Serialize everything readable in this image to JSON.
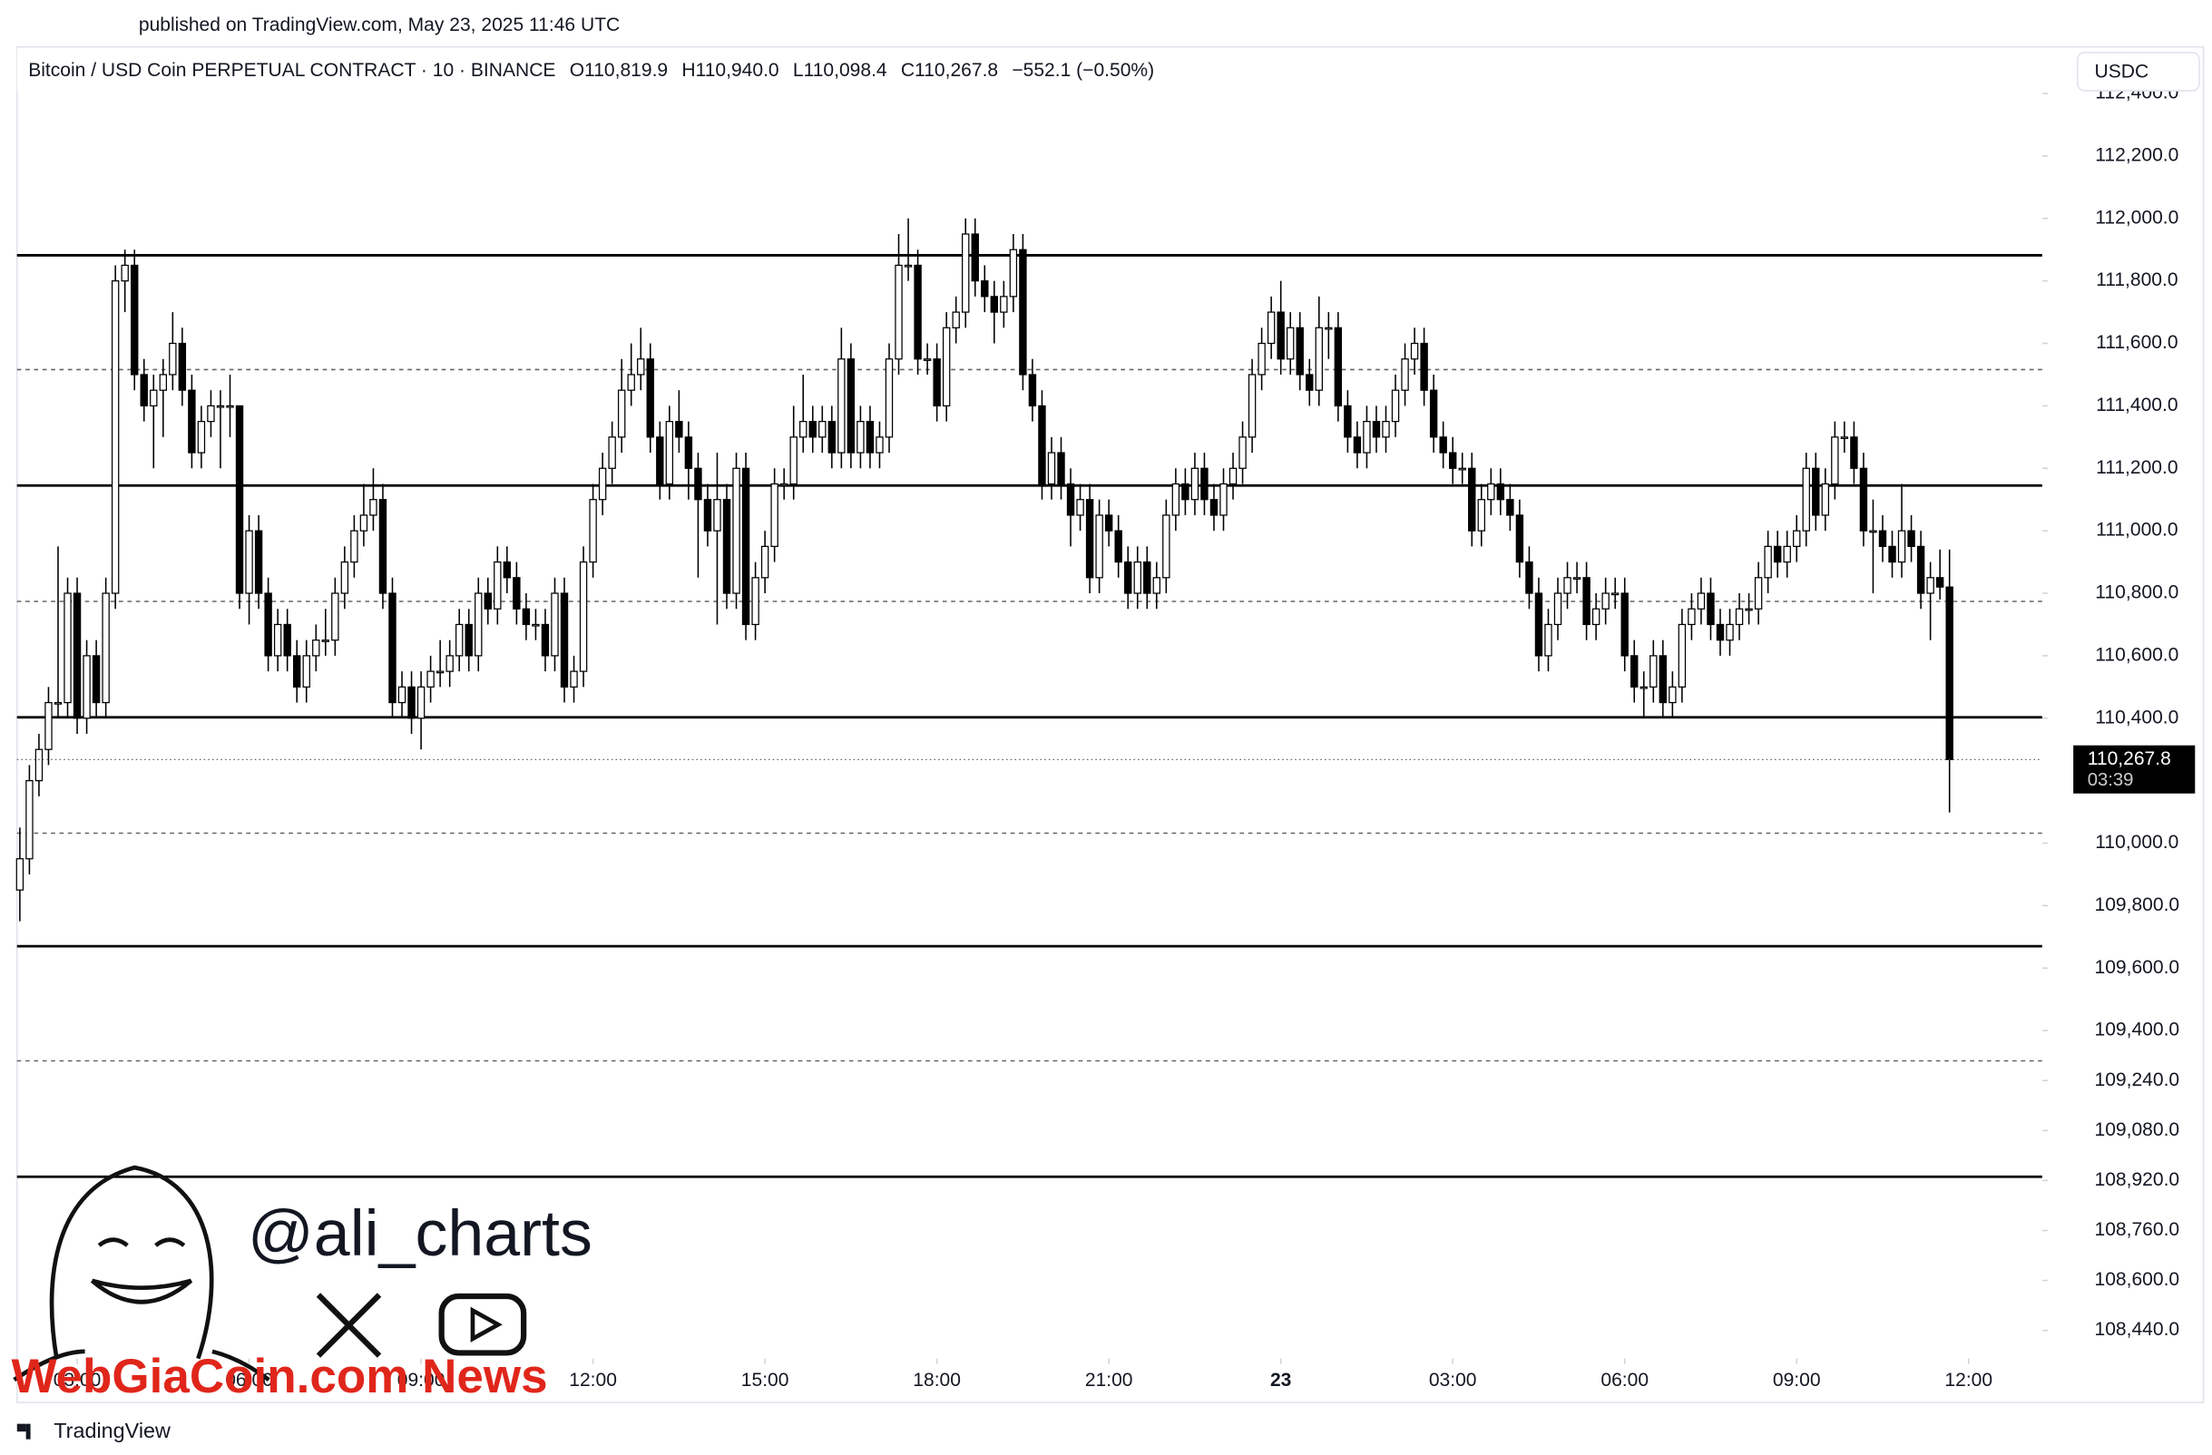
{
  "chart_data": {
    "type": "candlestick",
    "published": "published on TradingView.com, May 23, 2025 11:46 UTC",
    "title": "Bitcoin / USD Coin PERPETUAL CONTRACT · 10 · BINANCE",
    "ohlc_legend": [
      "O110,819.9",
      "H110,940.0",
      "L110,098.4",
      "C110,267.8",
      "−552.1 (−0.50%)"
    ],
    "currency": "USDC",
    "last_price": {
      "value": 110267.8,
      "label": "110,267.8"
    },
    "countdown": "03:39",
    "brand": "TradingView",
    "watermark": "WebGiaCoin.com News",
    "handle": "@ali_charts",
    "up_color": "#ffffff",
    "down_color": "#000000",
    "xlim": [
      -0.3,
      211.7
    ],
    "xticks": [
      {
        "value": 6,
        "label": "03:00"
      },
      {
        "value": 24,
        "label": "06:00"
      },
      {
        "value": 42,
        "label": "09:00"
      },
      {
        "value": 60,
        "label": "12:00"
      },
      {
        "value": 78,
        "label": "15:00"
      },
      {
        "value": 96,
        "label": "18:00"
      },
      {
        "value": 114,
        "label": "21:00"
      },
      {
        "value": 132,
        "label": "23"
      },
      {
        "value": 150,
        "label": "03:00"
      },
      {
        "value": 168,
        "label": "06:00"
      },
      {
        "value": 186,
        "label": "09:00"
      },
      {
        "value": 204,
        "label": "12:00"
      }
    ],
    "ylim": [
      108350,
      112540
    ],
    "yticks": [
      {
        "value": 112400,
        "label": "112,400.0"
      },
      {
        "value": 112200,
        "label": "112,200.0"
      },
      {
        "value": 112000,
        "label": "112,000.0"
      },
      {
        "value": 111800,
        "label": "111,800.0"
      },
      {
        "value": 111600,
        "label": "111,600.0"
      },
      {
        "value": 111400,
        "label": "111,400.0"
      },
      {
        "value": 111200,
        "label": "111,200.0"
      },
      {
        "value": 111000,
        "label": "111,000.0"
      },
      {
        "value": 110800,
        "label": "110,800.0"
      },
      {
        "value": 110600,
        "label": "110,600.0"
      },
      {
        "value": 110400,
        "label": "110,400.0"
      },
      {
        "value": 110000,
        "label": "110,000.0"
      },
      {
        "value": 109800,
        "label": "109,800.0"
      },
      {
        "value": 109600,
        "label": "109,600.0"
      },
      {
        "value": 109400,
        "label": "109,400.0"
      },
      {
        "value": 109240,
        "label": "109,240.0"
      },
      {
        "value": 109080,
        "label": "109,080.0"
      },
      {
        "value": 108920,
        "label": "108,920.0"
      },
      {
        "value": 108760,
        "label": "108,760.0"
      },
      {
        "value": 108600,
        "label": "108,600.0"
      },
      {
        "value": 108440,
        "label": "108,440.0"
      }
    ],
    "levels_solid": [
      111882,
      111145,
      110403,
      109670,
      108932
    ],
    "levels_dashed": [
      111516,
      110774,
      110032,
      109303
    ],
    "candles": [
      [
        109850,
        110050,
        109750,
        109950
      ],
      [
        109950,
        110250,
        109900,
        110200
      ],
      [
        110200,
        110350,
        110150,
        110300
      ],
      [
        110300,
        110500,
        110250,
        110450
      ],
      [
        110450,
        110950,
        110400,
        110450
      ],
      [
        110450,
        110850,
        110400,
        110800
      ],
      [
        110800,
        110850,
        110350,
        110400
      ],
      [
        110400,
        110650,
        110350,
        110600
      ],
      [
        110600,
        110650,
        110400,
        110450
      ],
      [
        110450,
        110850,
        110400,
        110800
      ],
      [
        110800,
        111850,
        110750,
        111800
      ],
      [
        111800,
        111900,
        111700,
        111850
      ],
      [
        111850,
        111900,
        111450,
        111500
      ],
      [
        111500,
        111550,
        111350,
        111400
      ],
      [
        111400,
        111500,
        111200,
        111450
      ],
      [
        111450,
        111550,
        111300,
        111500
      ],
      [
        111500,
        111700,
        111450,
        111600
      ],
      [
        111600,
        111650,
        111400,
        111450
      ],
      [
        111450,
        111500,
        111200,
        111250
      ],
      [
        111250,
        111400,
        111200,
        111350
      ],
      [
        111350,
        111450,
        111300,
        111400
      ],
      [
        111400,
        111450,
        111200,
        111400
      ],
      [
        111400,
        111500,
        111300,
        111400
      ],
      [
        111400,
        111400,
        110750,
        110800
      ],
      [
        110800,
        111050,
        110700,
        111000
      ],
      [
        111000,
        111050,
        110750,
        110800
      ],
      [
        110800,
        110850,
        110550,
        110600
      ],
      [
        110600,
        110750,
        110550,
        110700
      ],
      [
        110700,
        110750,
        110550,
        110600
      ],
      [
        110600,
        110650,
        110450,
        110500
      ],
      [
        110500,
        110650,
        110450,
        110600
      ],
      [
        110600,
        110700,
        110550,
        110650
      ],
      [
        110650,
        110750,
        110600,
        110650
      ],
      [
        110650,
        110850,
        110600,
        110800
      ],
      [
        110800,
        110950,
        110750,
        110900
      ],
      [
        110900,
        111050,
        110850,
        111000
      ],
      [
        111000,
        111150,
        110950,
        111050
      ],
      [
        111050,
        111200,
        111000,
        111100
      ],
      [
        111100,
        111150,
        110750,
        110800
      ],
      [
        110800,
        110850,
        110400,
        110450
      ],
      [
        110450,
        110550,
        110400,
        110500
      ],
      [
        110500,
        110550,
        110350,
        110400
      ],
      [
        110400,
        110550,
        110300,
        110500
      ],
      [
        110500,
        110600,
        110450,
        110550
      ],
      [
        110550,
        110650,
        110500,
        110550
      ],
      [
        110550,
        110650,
        110500,
        110600
      ],
      [
        110600,
        110750,
        110550,
        110700
      ],
      [
        110700,
        110750,
        110550,
        110600
      ],
      [
        110600,
        110850,
        110550,
        110800
      ],
      [
        110800,
        110850,
        110700,
        110750
      ],
      [
        110750,
        110950,
        110700,
        110900
      ],
      [
        110900,
        110950,
        110800,
        110850
      ],
      [
        110850,
        110900,
        110700,
        110750
      ],
      [
        110750,
        110800,
        110650,
        110700
      ],
      [
        110700,
        110750,
        110650,
        110700
      ],
      [
        110700,
        110750,
        110550,
        110600
      ],
      [
        110600,
        110850,
        110550,
        110800
      ],
      [
        110800,
        110850,
        110450,
        110500
      ],
      [
        110500,
        110600,
        110450,
        110550
      ],
      [
        110550,
        110950,
        110500,
        110900
      ],
      [
        110900,
        111150,
        110850,
        111100
      ],
      [
        111100,
        111250,
        111050,
        111200
      ],
      [
        111200,
        111350,
        111150,
        111300
      ],
      [
        111300,
        111550,
        111250,
        111450
      ],
      [
        111450,
        111600,
        111400,
        111500
      ],
      [
        111500,
        111650,
        111450,
        111550
      ],
      [
        111550,
        111600,
        111250,
        111300
      ],
      [
        111300,
        111350,
        111100,
        111150
      ],
      [
        111150,
        111400,
        111100,
        111350
      ],
      [
        111350,
        111450,
        111250,
        111300
      ],
      [
        111300,
        111350,
        111100,
        111200
      ],
      [
        111200,
        111250,
        110850,
        111100
      ],
      [
        111100,
        111150,
        110950,
        111000
      ],
      [
        111000,
        111250,
        110700,
        111100
      ],
      [
        111100,
        111150,
        110750,
        110800
      ],
      [
        110800,
        111250,
        110750,
        111200
      ],
      [
        111200,
        111250,
        110650,
        110700
      ],
      [
        110700,
        110900,
        110650,
        110850
      ],
      [
        110850,
        111000,
        110800,
        110950
      ],
      [
        110950,
        111200,
        110900,
        111150
      ],
      [
        111150,
        111200,
        111100,
        111150
      ],
      [
        111150,
        111400,
        111100,
        111300
      ],
      [
        111300,
        111500,
        111250,
        111350
      ],
      [
        111350,
        111400,
        111250,
        111300
      ],
      [
        111300,
        111400,
        111250,
        111350
      ],
      [
        111350,
        111400,
        111200,
        111250
      ],
      [
        111250,
        111650,
        111200,
        111550
      ],
      [
        111550,
        111600,
        111200,
        111250
      ],
      [
        111250,
        111400,
        111200,
        111350
      ],
      [
        111350,
        111400,
        111200,
        111250
      ],
      [
        111250,
        111350,
        111200,
        111300
      ],
      [
        111300,
        111600,
        111250,
        111550
      ],
      [
        111550,
        111950,
        111500,
        111850
      ],
      [
        111850,
        112000,
        111800,
        111850
      ],
      [
        111850,
        111900,
        111500,
        111550
      ],
      [
        111550,
        111600,
        111500,
        111550
      ],
      [
        111550,
        111600,
        111350,
        111400
      ],
      [
        111400,
        111700,
        111350,
        111650
      ],
      [
        111650,
        111750,
        111600,
        111700
      ],
      [
        111700,
        112000,
        111650,
        111950
      ],
      [
        111950,
        112000,
        111750,
        111800
      ],
      [
        111800,
        111850,
        111700,
        111750
      ],
      [
        111750,
        111800,
        111600,
        111700
      ],
      [
        111700,
        111800,
        111650,
        111750
      ],
      [
        111750,
        111950,
        111700,
        111900
      ],
      [
        111900,
        111950,
        111450,
        111500
      ],
      [
        111500,
        111550,
        111350,
        111400
      ],
      [
        111400,
        111450,
        111100,
        111150
      ],
      [
        111150,
        111300,
        111100,
        111250
      ],
      [
        111250,
        111300,
        111100,
        111150
      ],
      [
        111150,
        111200,
        110950,
        111050
      ],
      [
        111050,
        111150,
        111000,
        111100
      ],
      [
        111100,
        111150,
        110800,
        110850
      ],
      [
        110850,
        111100,
        110800,
        111050
      ],
      [
        111050,
        111100,
        110950,
        111000
      ],
      [
        111000,
        111050,
        110850,
        110900
      ],
      [
        110900,
        110950,
        110750,
        110800
      ],
      [
        110800,
        110950,
        110750,
        110900
      ],
      [
        110900,
        110950,
        110750,
        110800
      ],
      [
        110800,
        110900,
        110750,
        110850
      ],
      [
        110850,
        111100,
        110800,
        111050
      ],
      [
        111050,
        111200,
        111000,
        111150
      ],
      [
        111150,
        111200,
        111050,
        111100
      ],
      [
        111100,
        111250,
        111050,
        111200
      ],
      [
        111200,
        111250,
        111050,
        111100
      ],
      [
        111100,
        111150,
        111000,
        111050
      ],
      [
        111050,
        111200,
        111000,
        111150
      ],
      [
        111150,
        111250,
        111100,
        111200
      ],
      [
        111200,
        111350,
        111150,
        111300
      ],
      [
        111300,
        111550,
        111250,
        111500
      ],
      [
        111500,
        111650,
        111450,
        111600
      ],
      [
        111600,
        111750,
        111550,
        111700
      ],
      [
        111700,
        111800,
        111500,
        111550
      ],
      [
        111550,
        111700,
        111500,
        111650
      ],
      [
        111650,
        111700,
        111450,
        111500
      ],
      [
        111500,
        111550,
        111400,
        111450
      ],
      [
        111450,
        111750,
        111400,
        111650
      ],
      [
        111650,
        111700,
        111550,
        111650
      ],
      [
        111650,
        111700,
        111350,
        111400
      ],
      [
        111400,
        111450,
        111250,
        111300
      ],
      [
        111300,
        111350,
        111200,
        111250
      ],
      [
        111250,
        111400,
        111200,
        111350
      ],
      [
        111350,
        111400,
        111250,
        111300
      ],
      [
        111300,
        111400,
        111250,
        111350
      ],
      [
        111350,
        111500,
        111300,
        111450
      ],
      [
        111450,
        111600,
        111400,
        111550
      ],
      [
        111550,
        111650,
        111500,
        111600
      ],
      [
        111600,
        111650,
        111400,
        111450
      ],
      [
        111450,
        111500,
        111250,
        111300
      ],
      [
        111300,
        111350,
        111200,
        111250
      ],
      [
        111250,
        111300,
        111150,
        111200
      ],
      [
        111200,
        111250,
        111150,
        111200
      ],
      [
        111200,
        111250,
        110950,
        111000
      ],
      [
        111000,
        111150,
        110950,
        111100
      ],
      [
        111100,
        111200,
        111050,
        111150
      ],
      [
        111150,
        111200,
        111050,
        111100
      ],
      [
        111100,
        111150,
        111000,
        111050
      ],
      [
        111050,
        111100,
        110850,
        110900
      ],
      [
        110900,
        110950,
        110750,
        110800
      ],
      [
        110800,
        110850,
        110550,
        110600
      ],
      [
        110600,
        110750,
        110550,
        110700
      ],
      [
        110700,
        110850,
        110650,
        110800
      ],
      [
        110800,
        110900,
        110750,
        110850
      ],
      [
        110850,
        110900,
        110800,
        110850
      ],
      [
        110850,
        110900,
        110650,
        110700
      ],
      [
        110700,
        110800,
        110650,
        110750
      ],
      [
        110750,
        110850,
        110700,
        110800
      ],
      [
        110800,
        110850,
        110750,
        110800
      ],
      [
        110800,
        110850,
        110550,
        110600
      ],
      [
        110600,
        110650,
        110450,
        110500
      ],
      [
        110500,
        110550,
        110400,
        110500
      ],
      [
        110500,
        110650,
        110450,
        110600
      ],
      [
        110600,
        110650,
        110400,
        110450
      ],
      [
        110450,
        110550,
        110400,
        110500
      ],
      [
        110500,
        110750,
        110450,
        110700
      ],
      [
        110700,
        110800,
        110650,
        110750
      ],
      [
        110750,
        110850,
        110700,
        110800
      ],
      [
        110800,
        110850,
        110650,
        110700
      ],
      [
        110700,
        110750,
        110600,
        110650
      ],
      [
        110650,
        110750,
        110600,
        110700
      ],
      [
        110700,
        110800,
        110650,
        110750
      ],
      [
        110750,
        110800,
        110700,
        110750
      ],
      [
        110750,
        110900,
        110700,
        110850
      ],
      [
        110850,
        111000,
        110800,
        110950
      ],
      [
        110950,
        111000,
        110850,
        110900
      ],
      [
        110900,
        111000,
        110850,
        110950
      ],
      [
        110950,
        111050,
        110900,
        111000
      ],
      [
        111000,
        111250,
        110950,
        111200
      ],
      [
        111200,
        111250,
        111000,
        111050
      ],
      [
        111050,
        111200,
        111000,
        111150
      ],
      [
        111150,
        111350,
        111100,
        111300
      ],
      [
        111300,
        111350,
        111250,
        111300
      ],
      [
        111300,
        111350,
        111150,
        111200
      ],
      [
        111200,
        111250,
        110950,
        111000
      ],
      [
        111000,
        111100,
        110800,
        111000
      ],
      [
        111000,
        111050,
        110900,
        110950
      ],
      [
        110950,
        111000,
        110850,
        110900
      ],
      [
        110900,
        111150,
        110850,
        111000
      ],
      [
        111000,
        111050,
        110900,
        110950
      ],
      [
        110950,
        111000,
        110750,
        110800
      ],
      [
        110800,
        110900,
        110650,
        110850
      ],
      [
        110850,
        110940,
        110780,
        110820
      ],
      [
        110819.9,
        110940,
        110098.4,
        110267.8
      ]
    ]
  }
}
